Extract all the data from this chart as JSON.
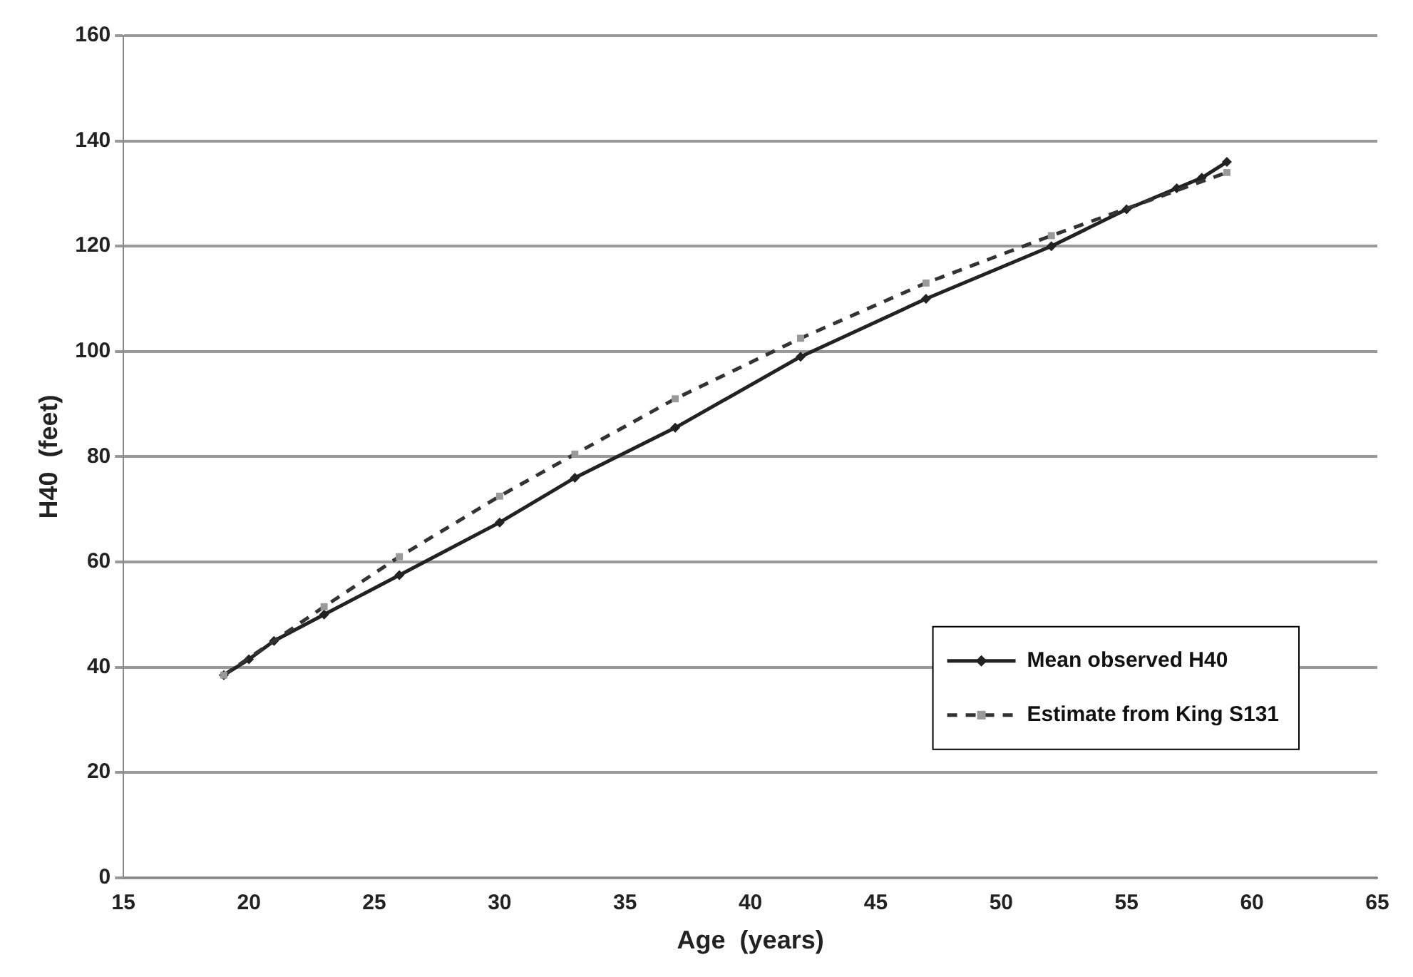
{
  "chart_data": {
    "type": "line",
    "xlabel": "Age  (years)",
    "ylabel": "H40  (feet)",
    "xlim": [
      15,
      65
    ],
    "xticks": [
      15,
      20,
      25,
      30,
      35,
      40,
      45,
      50,
      55,
      60,
      65
    ],
    "ylim": [
      0,
      160
    ],
    "yticks": [
      0,
      20,
      40,
      60,
      80,
      100,
      120,
      140,
      160
    ],
    "grid": "y",
    "legend": "bottom right",
    "series": [
      {
        "name": "Mean observed H40",
        "color": "#222222",
        "marker": "diamond",
        "line_style": "solid",
        "x": [
          19,
          20,
          21,
          23,
          26,
          30,
          33,
          37,
          42,
          47,
          52,
          55,
          57,
          58,
          59
        ],
        "values": [
          38.5,
          41.5,
          45,
          50,
          57.5,
          67.5,
          76,
          85.5,
          99,
          110,
          120,
          127,
          131,
          133,
          136
        ]
      },
      {
        "name": "Estimate from King S131",
        "color": "#333333",
        "marker": "square",
        "line_style": "dashed",
        "x": [
          19,
          23,
          26,
          30,
          33,
          37,
          42,
          47,
          52,
          59
        ],
        "values": [
          38.5,
          51.5,
          61,
          72.5,
          80.5,
          91,
          102.5,
          113,
          122,
          134
        ]
      }
    ]
  }
}
